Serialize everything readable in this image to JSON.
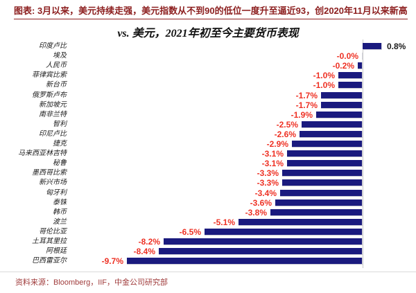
{
  "header": {
    "title": "图表: 3月以来，美元持续走强，美元指数从不到90的低位一度升至逼近93，创2020年11月以来新高"
  },
  "chart_data": {
    "type": "bar",
    "orientation": "horizontal",
    "title": "vs. 美元，2021年初至今主要货币表现",
    "unit": "%",
    "categories": [
      "印度卢比",
      "埃及",
      "人民币",
      "菲律宾比索",
      "新台币",
      "俄罗斯卢布",
      "新加坡元",
      "南非兰特",
      "智利",
      "印尼卢比",
      "捷克",
      "马来西亚林吉特",
      "秘鲁",
      "墨西哥比索",
      "新兴市场",
      "匈牙利",
      "泰铢",
      "韩币",
      "波兰",
      "哥伦比亚",
      "土耳其里拉",
      "阿根廷",
      "巴西雷亚尔"
    ],
    "values": [
      0.8,
      -0.0,
      -0.2,
      -1.0,
      -1.0,
      -1.7,
      -1.7,
      -1.9,
      -2.5,
      -2.6,
      -2.9,
      -3.1,
      -3.1,
      -3.3,
      -3.3,
      -3.4,
      -3.6,
      -3.8,
      -5.1,
      -6.5,
      -8.2,
      -8.4,
      -9.7
    ],
    "value_labels": [
      "0.8%",
      "-0.0%",
      "-0.2%",
      "-1.0%",
      "-1.0%",
      "-1.7%",
      "-1.7%",
      "-1.9%",
      "-2.5%",
      "-2.6%",
      "-2.9%",
      "-3.1%",
      "-3.1%",
      "-3.3%",
      "-3.3%",
      "-3.4%",
      "-3.6%",
      "-3.8%",
      "-5.1%",
      "-6.5%",
      "-8.2%",
      "-8.4%",
      "-9.7%"
    ],
    "xlim": [
      -10,
      1
    ],
    "baseline": 0,
    "grid": "off",
    "legend": "none",
    "bar_color": "#1A1A7E",
    "negative_label_color": "#EE3124",
    "positive_label_color": "#1A1A1A"
  },
  "footer": {
    "source": "资料来源：Bloomberg，IIF，中金公司研究部"
  }
}
